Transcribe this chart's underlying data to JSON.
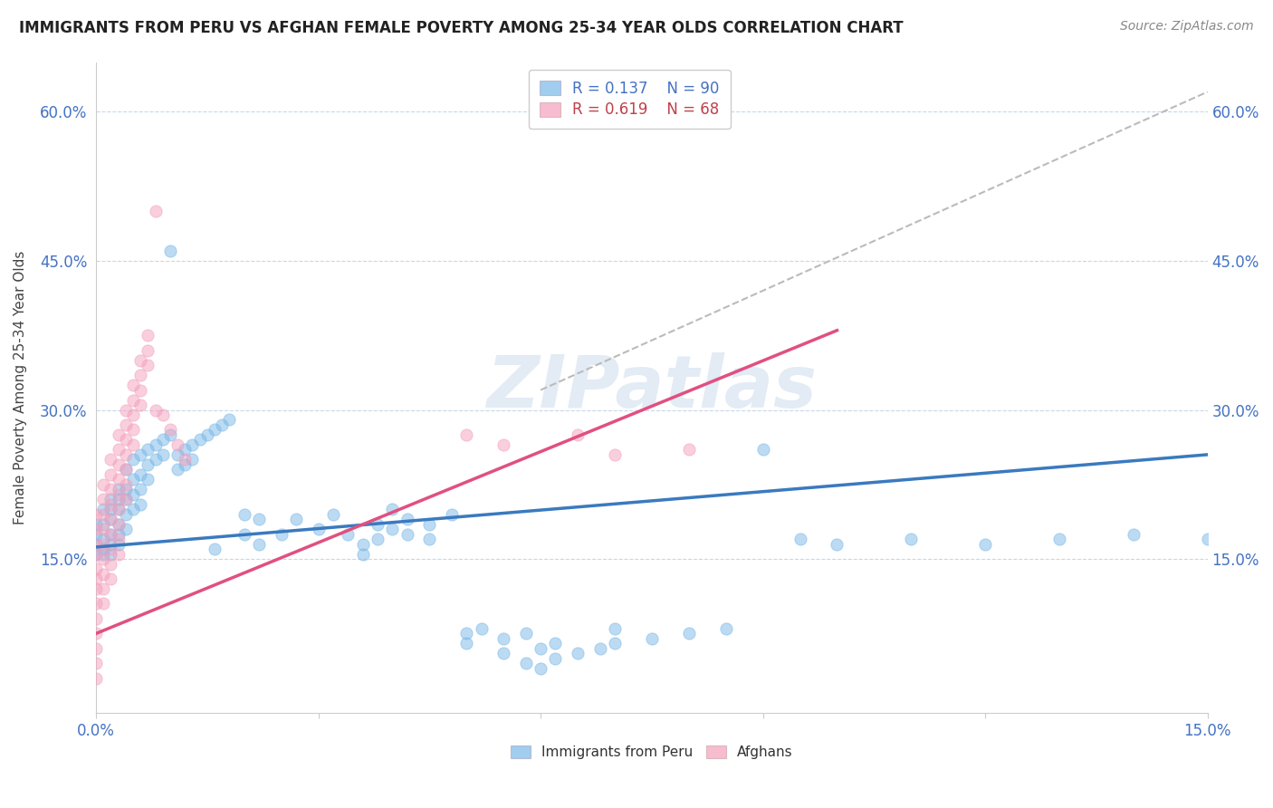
{
  "title": "IMMIGRANTS FROM PERU VS AFGHAN FEMALE POVERTY AMONG 25-34 YEAR OLDS CORRELATION CHART",
  "source": "Source: ZipAtlas.com",
  "ylabel": "Female Poverty Among 25-34 Year Olds",
  "xlim": [
    0.0,
    0.15
  ],
  "ylim": [
    -0.005,
    0.65
  ],
  "peru_color": "#7ab8e8",
  "afghan_color": "#f4a0bc",
  "trend_peru_color": "#3a7abf",
  "trend_afghan_color": "#e05080",
  "background_color": "#ffffff",
  "watermark": "ZIPatlas",
  "peru_trend_x": [
    0.0,
    0.15
  ],
  "peru_trend_y": [
    0.162,
    0.255
  ],
  "afghan_trend_x": [
    0.0,
    0.1
  ],
  "afghan_trend_y": [
    0.075,
    0.38
  ],
  "dashed_trend_x": [
    0.06,
    0.15
  ],
  "dashed_trend_y": [
    0.32,
    0.62
  ],
  "peru_scatter": [
    [
      0.0,
      0.185
    ],
    [
      0.0,
      0.175
    ],
    [
      0.0,
      0.165
    ],
    [
      0.0,
      0.155
    ],
    [
      0.001,
      0.2
    ],
    [
      0.001,
      0.185
    ],
    [
      0.001,
      0.17
    ],
    [
      0.001,
      0.16
    ],
    [
      0.001,
      0.155
    ],
    [
      0.002,
      0.21
    ],
    [
      0.002,
      0.2
    ],
    [
      0.002,
      0.19
    ],
    [
      0.002,
      0.175
    ],
    [
      0.002,
      0.165
    ],
    [
      0.002,
      0.155
    ],
    [
      0.003,
      0.22
    ],
    [
      0.003,
      0.21
    ],
    [
      0.003,
      0.2
    ],
    [
      0.003,
      0.185
    ],
    [
      0.003,
      0.175
    ],
    [
      0.003,
      0.165
    ],
    [
      0.004,
      0.24
    ],
    [
      0.004,
      0.22
    ],
    [
      0.004,
      0.21
    ],
    [
      0.004,
      0.195
    ],
    [
      0.004,
      0.18
    ],
    [
      0.005,
      0.25
    ],
    [
      0.005,
      0.23
    ],
    [
      0.005,
      0.215
    ],
    [
      0.005,
      0.2
    ],
    [
      0.006,
      0.255
    ],
    [
      0.006,
      0.235
    ],
    [
      0.006,
      0.22
    ],
    [
      0.006,
      0.205
    ],
    [
      0.007,
      0.26
    ],
    [
      0.007,
      0.245
    ],
    [
      0.007,
      0.23
    ],
    [
      0.008,
      0.265
    ],
    [
      0.008,
      0.25
    ],
    [
      0.009,
      0.27
    ],
    [
      0.009,
      0.255
    ],
    [
      0.01,
      0.275
    ],
    [
      0.01,
      0.46
    ],
    [
      0.011,
      0.255
    ],
    [
      0.011,
      0.24
    ],
    [
      0.012,
      0.26
    ],
    [
      0.012,
      0.245
    ],
    [
      0.013,
      0.265
    ],
    [
      0.013,
      0.25
    ],
    [
      0.014,
      0.27
    ],
    [
      0.015,
      0.275
    ],
    [
      0.016,
      0.28
    ],
    [
      0.016,
      0.16
    ],
    [
      0.017,
      0.285
    ],
    [
      0.018,
      0.29
    ],
    [
      0.02,
      0.195
    ],
    [
      0.02,
      0.175
    ],
    [
      0.022,
      0.19
    ],
    [
      0.022,
      0.165
    ],
    [
      0.025,
      0.175
    ],
    [
      0.027,
      0.19
    ],
    [
      0.03,
      0.18
    ],
    [
      0.032,
      0.195
    ],
    [
      0.034,
      0.175
    ],
    [
      0.036,
      0.165
    ],
    [
      0.036,
      0.155
    ],
    [
      0.038,
      0.185
    ],
    [
      0.038,
      0.17
    ],
    [
      0.04,
      0.2
    ],
    [
      0.04,
      0.18
    ],
    [
      0.042,
      0.19
    ],
    [
      0.042,
      0.175
    ],
    [
      0.045,
      0.185
    ],
    [
      0.045,
      0.17
    ],
    [
      0.048,
      0.195
    ],
    [
      0.05,
      0.075
    ],
    [
      0.05,
      0.065
    ],
    [
      0.052,
      0.08
    ],
    [
      0.055,
      0.07
    ],
    [
      0.055,
      0.055
    ],
    [
      0.058,
      0.075
    ],
    [
      0.058,
      0.045
    ],
    [
      0.06,
      0.06
    ],
    [
      0.06,
      0.04
    ],
    [
      0.062,
      0.065
    ],
    [
      0.062,
      0.05
    ],
    [
      0.065,
      0.055
    ],
    [
      0.068,
      0.06
    ],
    [
      0.07,
      0.08
    ],
    [
      0.07,
      0.065
    ],
    [
      0.075,
      0.07
    ],
    [
      0.08,
      0.075
    ],
    [
      0.085,
      0.08
    ],
    [
      0.09,
      0.26
    ],
    [
      0.095,
      0.17
    ],
    [
      0.1,
      0.165
    ],
    [
      0.11,
      0.17
    ],
    [
      0.12,
      0.165
    ],
    [
      0.13,
      0.17
    ],
    [
      0.14,
      0.175
    ],
    [
      0.15,
      0.17
    ]
  ],
  "afghan_scatter": [
    [
      0.0,
      0.195
    ],
    [
      0.0,
      0.18
    ],
    [
      0.0,
      0.165
    ],
    [
      0.0,
      0.155
    ],
    [
      0.0,
      0.14
    ],
    [
      0.0,
      0.13
    ],
    [
      0.0,
      0.12
    ],
    [
      0.0,
      0.105
    ],
    [
      0.0,
      0.09
    ],
    [
      0.0,
      0.075
    ],
    [
      0.0,
      0.06
    ],
    [
      0.0,
      0.045
    ],
    [
      0.0,
      0.03
    ],
    [
      0.001,
      0.225
    ],
    [
      0.001,
      0.21
    ],
    [
      0.001,
      0.195
    ],
    [
      0.001,
      0.18
    ],
    [
      0.001,
      0.165
    ],
    [
      0.001,
      0.15
    ],
    [
      0.001,
      0.135
    ],
    [
      0.001,
      0.12
    ],
    [
      0.001,
      0.105
    ],
    [
      0.002,
      0.25
    ],
    [
      0.002,
      0.235
    ],
    [
      0.002,
      0.22
    ],
    [
      0.002,
      0.205
    ],
    [
      0.002,
      0.19
    ],
    [
      0.002,
      0.175
    ],
    [
      0.002,
      0.16
    ],
    [
      0.002,
      0.145
    ],
    [
      0.002,
      0.13
    ],
    [
      0.003,
      0.275
    ],
    [
      0.003,
      0.26
    ],
    [
      0.003,
      0.245
    ],
    [
      0.003,
      0.23
    ],
    [
      0.003,
      0.215
    ],
    [
      0.003,
      0.2
    ],
    [
      0.003,
      0.185
    ],
    [
      0.003,
      0.17
    ],
    [
      0.003,
      0.155
    ],
    [
      0.004,
      0.3
    ],
    [
      0.004,
      0.285
    ],
    [
      0.004,
      0.27
    ],
    [
      0.004,
      0.255
    ],
    [
      0.004,
      0.24
    ],
    [
      0.004,
      0.225
    ],
    [
      0.004,
      0.21
    ],
    [
      0.005,
      0.325
    ],
    [
      0.005,
      0.31
    ],
    [
      0.005,
      0.295
    ],
    [
      0.005,
      0.28
    ],
    [
      0.005,
      0.265
    ],
    [
      0.006,
      0.35
    ],
    [
      0.006,
      0.335
    ],
    [
      0.006,
      0.32
    ],
    [
      0.006,
      0.305
    ],
    [
      0.007,
      0.375
    ],
    [
      0.007,
      0.36
    ],
    [
      0.007,
      0.345
    ],
    [
      0.008,
      0.5
    ],
    [
      0.008,
      0.3
    ],
    [
      0.009,
      0.295
    ],
    [
      0.01,
      0.28
    ],
    [
      0.011,
      0.265
    ],
    [
      0.012,
      0.25
    ],
    [
      0.05,
      0.275
    ],
    [
      0.055,
      0.265
    ],
    [
      0.065,
      0.275
    ],
    [
      0.07,
      0.255
    ],
    [
      0.08,
      0.26
    ]
  ]
}
